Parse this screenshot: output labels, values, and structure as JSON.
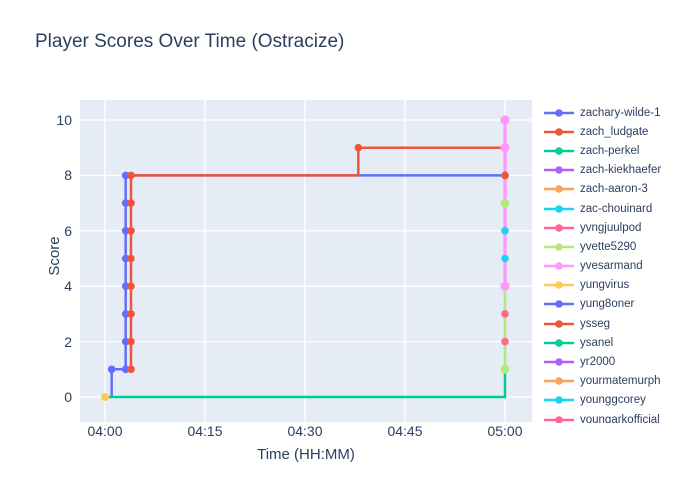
{
  "chart_data": {
    "type": "line",
    "title": "Player Scores Over Time (Ostracize)",
    "xlabel": "Time (HH:MM)",
    "ylabel": "Score",
    "x_ticks": [
      "04:00",
      "04:15",
      "04:30",
      "04:45",
      "05:00"
    ],
    "x_tick_minutes": [
      0,
      15,
      30,
      45,
      60
    ],
    "y_ticks": [
      0,
      2,
      4,
      6,
      8,
      10
    ],
    "x_range_minutes": [
      -3.8,
      64.1
    ],
    "y_range": [
      -0.9,
      10.7
    ],
    "grid": true,
    "legend_position": "right",
    "plot_bg": "#e5ecf6",
    "grid_color": "#ffffff",
    "text_color": "#2a3f5f",
    "series": [
      {
        "name": "zachary-wilde-1",
        "color": "#636EFA",
        "line_width": 2.5,
        "marker_size": 3.8,
        "line": [
          [
            1.0,
            0
          ],
          [
            1.0,
            1
          ],
          [
            3.1,
            1
          ],
          [
            3.1,
            8
          ],
          [
            60,
            8
          ]
        ],
        "markers": [
          [
            1.0,
            1
          ],
          [
            3.1,
            1
          ],
          [
            3.1,
            2
          ],
          [
            3.1,
            3
          ],
          [
            3.1,
            4
          ],
          [
            3.1,
            5
          ],
          [
            3.1,
            6
          ],
          [
            3.1,
            7
          ],
          [
            3.1,
            8
          ],
          [
            60,
            8
          ]
        ]
      },
      {
        "name": "zach_ludgate",
        "color": "#EF553B",
        "line_width": 2.5,
        "marker_size": 3.8,
        "line": [
          [
            3.9,
            1
          ],
          [
            3.9,
            8
          ],
          [
            38,
            8
          ],
          [
            38,
            9
          ],
          [
            60,
            9
          ]
        ],
        "markers": [
          [
            3.9,
            1
          ],
          [
            3.9,
            2
          ],
          [
            3.9,
            3
          ],
          [
            3.9,
            4
          ],
          [
            3.9,
            5
          ],
          [
            3.9,
            6
          ],
          [
            3.9,
            7
          ],
          [
            3.9,
            8
          ],
          [
            38,
            9
          ],
          [
            60,
            9
          ]
        ]
      },
      {
        "name": "zach-perkel",
        "color": "#00CC96",
        "line_width": 2.5,
        "marker_size": 3.8,
        "line": [
          [
            0,
            0
          ],
          [
            60,
            0
          ],
          [
            60,
            1
          ]
        ],
        "markers": []
      },
      {
        "name": "yvette5290",
        "color": "#B6E880",
        "line_width": 2.8,
        "marker_size": 4.4,
        "line": [
          [
            60,
            1
          ],
          [
            60,
            4
          ]
        ],
        "markers": [
          [
            60,
            7
          ],
          [
            60,
            1
          ]
        ]
      },
      {
        "name": "yvesarmand",
        "color": "#FF97FF",
        "line_width": 3.2,
        "marker_size": 4.6,
        "line": [
          [
            60,
            4
          ],
          [
            60,
            10
          ]
        ],
        "markers": [
          [
            60,
            10
          ],
          [
            60,
            9
          ],
          [
            60,
            4
          ]
        ]
      },
      {
        "name": "ysseg",
        "color": "#EF553B",
        "line_width": 2.5,
        "marker_size": 3.8,
        "line": null,
        "markers": [
          [
            60,
            8
          ]
        ]
      },
      {
        "name": "zac-chouinard",
        "color": "#19D3F3",
        "line_width": 2.5,
        "marker_size": 3.8,
        "line": null,
        "markers": [
          [
            60,
            6
          ],
          [
            60,
            5
          ]
        ]
      },
      {
        "name": "yvngjuulpod",
        "color": "#FF6692",
        "line_width": 2.5,
        "marker_size": 3.8,
        "line": null,
        "markers": [
          [
            60,
            3
          ],
          [
            60,
            2
          ]
        ]
      },
      {
        "name": "yungvirus",
        "color": "#FECB52",
        "line_width": 2.5,
        "marker_size": 4.0,
        "line": null,
        "markers": [
          [
            0,
            0
          ]
        ]
      }
    ]
  },
  "legend": {
    "items": [
      {
        "label": "zachary-wilde-1",
        "color": "#636EFA"
      },
      {
        "label": "zach_ludgate",
        "color": "#EF553B"
      },
      {
        "label": "zach-perkel",
        "color": "#00CC96"
      },
      {
        "label": "zach-kiekhaefer",
        "color": "#AB63FA"
      },
      {
        "label": "zach-aaron-3",
        "color": "#FFA15A"
      },
      {
        "label": "zac-chouinard",
        "color": "#19D3F3"
      },
      {
        "label": "yvngjuulpod",
        "color": "#FF6692"
      },
      {
        "label": "yvette5290",
        "color": "#B6E880"
      },
      {
        "label": "yvesarmand",
        "color": "#FF97FF"
      },
      {
        "label": "yungvirus",
        "color": "#FECB52"
      },
      {
        "label": "yung8oner",
        "color": "#636EFA"
      },
      {
        "label": "ysseg",
        "color": "#EF553B"
      },
      {
        "label": "ysanel",
        "color": "#00CC96"
      },
      {
        "label": "yr2000",
        "color": "#AB63FA"
      },
      {
        "label": "yourmatemurph",
        "color": "#FFA15A"
      },
      {
        "label": "younggcorey",
        "color": "#19D3F3"
      },
      {
        "label": "youngarkofficial",
        "color": "#FF6692"
      }
    ]
  }
}
